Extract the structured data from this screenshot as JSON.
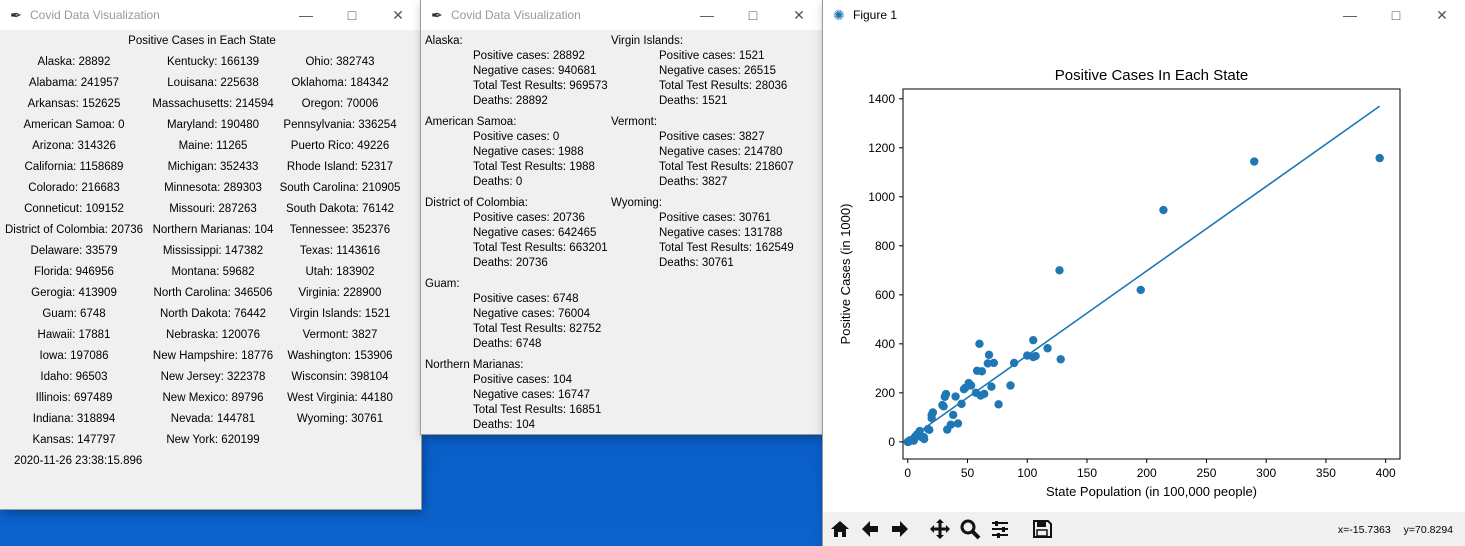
{
  "summary_window": {
    "title": "Covid Data Visualization",
    "heading": "Positive Cases in Each State",
    "columns": [
      [
        "Alaska: 28892",
        "Alabama: 241957",
        "Arkansas: 152625",
        "American Samoa: 0",
        "Arizona: 314326",
        "California: 1158689",
        "Colorado: 216683",
        "Conneticut: 109152",
        "District of Colombia: 20736",
        "Delaware: 33579",
        "Florida: 946956",
        "Gerogia: 413909",
        "Guam: 6748",
        "Hawaii: 17881",
        "Iowa: 197086",
        "Idaho: 96503",
        "Illinois: 697489",
        "Indiana: 318894",
        "Kansas: 147797"
      ],
      [
        "Kentucky: 166139",
        "Louisana: 225638",
        "Massachusetts: 214594",
        "Maryland: 190480",
        "Maine: 11265",
        "Michigan: 352433",
        "Minnesota: 289303",
        "Missouri: 287263",
        "Northern Marianas: 104",
        "Mississippi: 147382",
        "Montana: 59682",
        "North Carolina: 346506",
        "North Dakota: 76442",
        "Nebraska: 120076",
        "New Hampshire: 18776",
        "New Jersey: 322378",
        "New Mexico: 89796",
        "Nevada: 144781",
        "New York: 620199"
      ],
      [
        "Ohio: 382743",
        "Oklahoma: 184342",
        "Oregon: 70006",
        "Pennsylvania: 336254",
        "Puerto Rico: 49226",
        "Rhode Island: 52317",
        "South Carolina: 210905",
        "South Dakota: 76142",
        "Tennessee: 352376",
        "Texas: 1143616",
        "Utah: 183902",
        "Virginia: 228900",
        "Virgin Islands: 1521",
        "Vermont: 3827",
        "Washington: 153906",
        "Wisconsin: 398104",
        "West Virginia: 44180",
        "Wyoming: 30761"
      ]
    ],
    "timestamp": "2020-11-26 23:38:15.896"
  },
  "details_window": {
    "title": "Covid Data Visualization",
    "left": [
      {
        "name": "Alaska:",
        "lines": [
          "Positive cases: 28892",
          "Negative cases: 940681",
          "Total Test Results: 969573",
          "Deaths: 28892"
        ]
      },
      {
        "name": "American Samoa:",
        "lines": [
          "Positive cases: 0",
          "Negative cases: 1988",
          "Total Test Results: 1988",
          "Deaths: 0"
        ]
      },
      {
        "name": "District of Colombia:",
        "lines": [
          "Positive cases: 20736",
          "Negative cases: 642465",
          "Total Test Results: 663201",
          "Deaths: 20736"
        ]
      },
      {
        "name": "Guam:",
        "lines": [
          "Positive cases: 6748",
          "Negative cases: 76004",
          "Total Test Results: 82752",
          "Deaths: 6748"
        ]
      },
      {
        "name": "Northern Marianas:",
        "lines": [
          "Positive cases: 104",
          "Negative cases: 16747",
          "Total Test Results: 16851",
          "Deaths: 104"
        ]
      }
    ],
    "right": [
      {
        "name": "Virgin Islands:",
        "lines": [
          "Positive cases: 1521",
          "Negative cases: 26515",
          "Total Test Results: 28036",
          "Deaths: 1521"
        ]
      },
      {
        "name": "Vermont:",
        "lines": [
          "Positive cases: 3827",
          "Negative cases: 214780",
          "Total Test Results: 218607",
          "Deaths: 3827"
        ]
      },
      {
        "name": "Wyoming:",
        "lines": [
          "Positive cases: 30761",
          "Negative cases: 131788",
          "Total Test Results: 162549",
          "Deaths: 30761"
        ]
      }
    ]
  },
  "figure_window": {
    "title": "Figure 1",
    "coord_x": "x=-15.7363",
    "coord_y": "y=70.8294",
    "toolbar_icons": [
      "home-icon",
      "back-arrow-icon",
      "forward-arrow-icon",
      "pan-move-icon",
      "zoom-magnifier-icon",
      "configure-subplots-icon",
      "save-disk-icon"
    ]
  },
  "chart_data": {
    "type": "scatter",
    "title": "Positive Cases In Each State",
    "xlabel": "State Population (in 100,000 people)",
    "ylabel": "Positive Cases (in 1000)",
    "xlim": [
      -4,
      412
    ],
    "ylim": [
      -70,
      1440
    ],
    "xticks": [
      0,
      50,
      100,
      150,
      200,
      250,
      300,
      350,
      400
    ],
    "yticks": [
      0,
      200,
      400,
      600,
      800,
      1000,
      1200,
      1400
    ],
    "color": "#1f77b4",
    "grid": false,
    "points": [
      [
        0,
        0
      ],
      [
        0.6,
        0.1
      ],
      [
        1,
        1.5
      ],
      [
        1.7,
        3.8
      ],
      [
        2,
        6.7
      ],
      [
        5,
        5
      ],
      [
        5.5,
        11
      ],
      [
        6,
        20.7
      ],
      [
        7.6,
        28.9
      ],
      [
        8,
        30.7
      ],
      [
        9,
        33.6
      ],
      [
        10,
        44
      ],
      [
        12,
        17.9
      ],
      [
        13.5,
        18.8
      ],
      [
        13.7,
        11.3
      ],
      [
        17,
        52
      ],
      [
        18,
        49
      ],
      [
        20,
        96.5
      ],
      [
        20,
        110
      ],
      [
        21,
        120
      ],
      [
        29,
        150
      ],
      [
        30,
        145
      ],
      [
        31,
        184
      ],
      [
        32,
        195
      ],
      [
        33,
        50
      ],
      [
        36,
        70
      ],
      [
        38,
        110
      ],
      [
        40,
        185
      ],
      [
        42,
        75
      ],
      [
        45,
        155
      ],
      [
        47,
        215
      ],
      [
        48,
        220
      ],
      [
        51,
        240
      ],
      [
        53,
        230
      ],
      [
        57,
        200
      ],
      [
        58,
        290
      ],
      [
        60,
        400
      ],
      [
        61,
        189
      ],
      [
        62,
        288
      ],
      [
        64,
        196
      ],
      [
        67,
        320
      ],
      [
        68,
        355
      ],
      [
        70,
        225
      ],
      [
        72,
        322
      ],
      [
        76,
        153
      ],
      [
        86,
        230
      ],
      [
        89,
        322
      ],
      [
        100,
        352
      ],
      [
        105,
        415
      ],
      [
        105,
        346
      ],
      [
        107,
        350
      ],
      [
        117,
        382
      ],
      [
        127,
        700
      ],
      [
        128,
        337
      ],
      [
        195,
        620
      ],
      [
        214,
        946
      ],
      [
        290,
        1144
      ],
      [
        395,
        1158
      ]
    ],
    "fit_line": {
      "x": [
        0,
        395
      ],
      "y": [
        8,
        1370
      ]
    }
  }
}
